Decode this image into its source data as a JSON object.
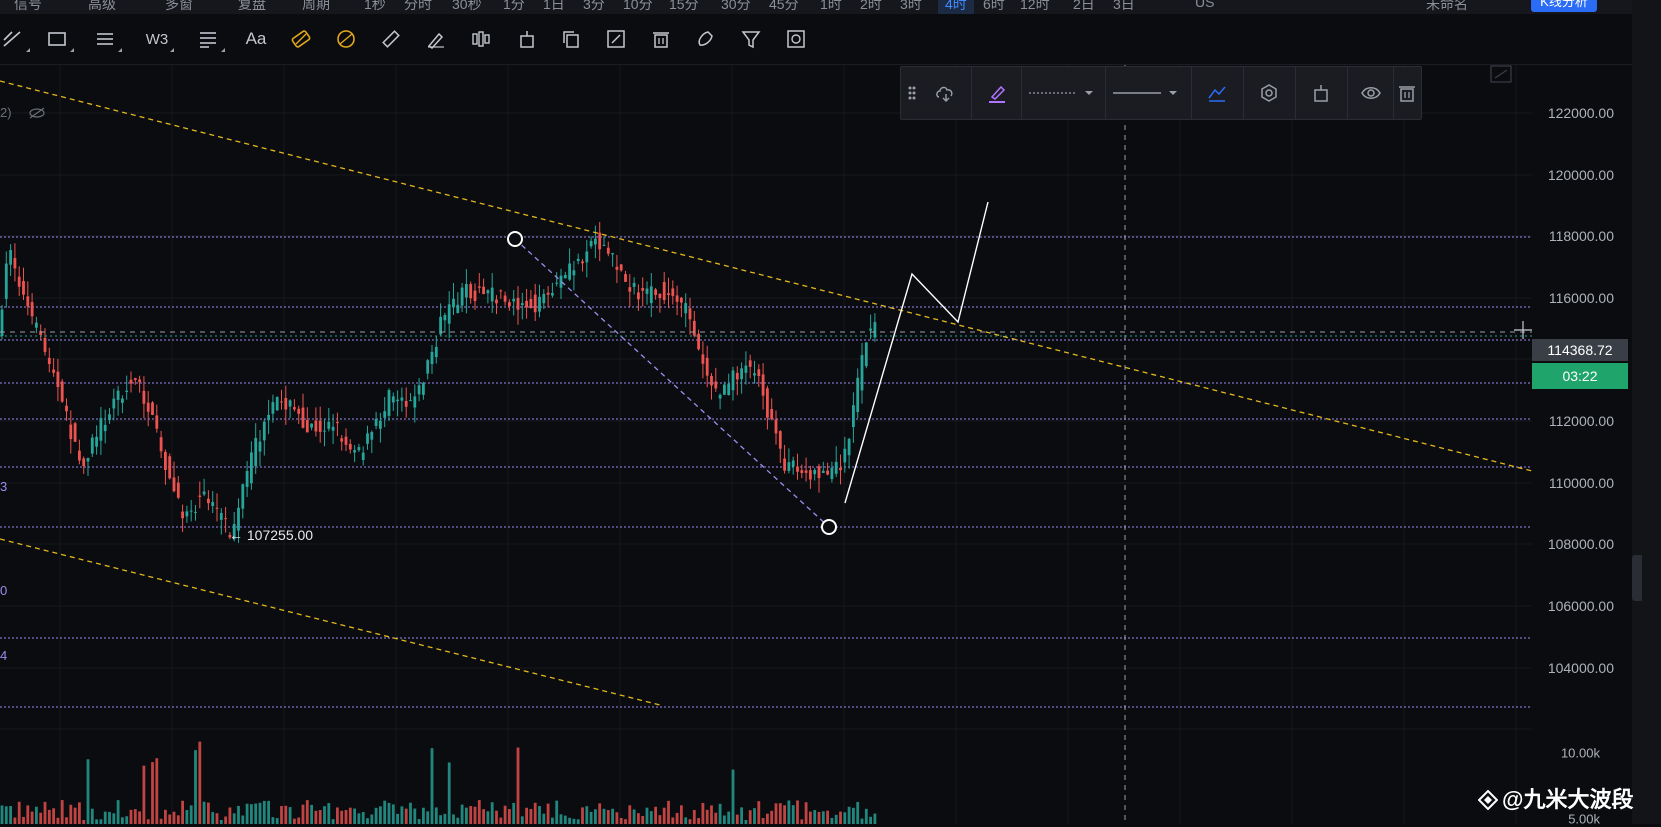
{
  "top_bar": {
    "items": [
      "信号",
      "高级",
      "多窗",
      "复盘",
      "周期",
      "1秒",
      "分时",
      "30秒",
      "1分",
      "1日",
      "3分",
      "10分",
      "15分",
      "30分",
      "45分",
      "1时",
      "2时",
      "3时",
      "4时",
      "6时",
      "12时",
      "2日",
      "3日"
    ],
    "active_item": "4时",
    "right_label": "US",
    "account": "未命名",
    "kline_button": "K线分析"
  },
  "toolbar": {
    "text_tool_label": "Aa",
    "fibo_label": "W3"
  },
  "float_toolbar": {
    "tools": [
      "template-icon",
      "pen-color-icon",
      "line-style-dotted",
      "line-style-solid",
      "visibility-icon",
      "settings-icon",
      "lock-icon",
      "eye-icon",
      "trash-icon"
    ]
  },
  "price_axis": {
    "labels": [
      "122000.00",
      "120000.00",
      "118000.00",
      "116000.00",
      "112000.00",
      "110000.00",
      "108000.00",
      "106000.00",
      "104000.00"
    ],
    "current_price": "114368.72",
    "countdown": "03:22",
    "volume_labels": [
      "10.00k",
      "5.00k"
    ]
  },
  "chart": {
    "low_annotation": "← 107255.00",
    "fib_labels": [
      "3",
      "0",
      "4"
    ],
    "indicator_label": "2)"
  },
  "colors": {
    "background": "#0b0c0f",
    "bull": "#26a69a",
    "bear": "#ef5350",
    "trend_line": "#e3b81c",
    "fib_line": "#9c8cf0",
    "current_price": "#26a69a",
    "accent": "#2a6cf6"
  },
  "watermark": "@九米大波段"
}
